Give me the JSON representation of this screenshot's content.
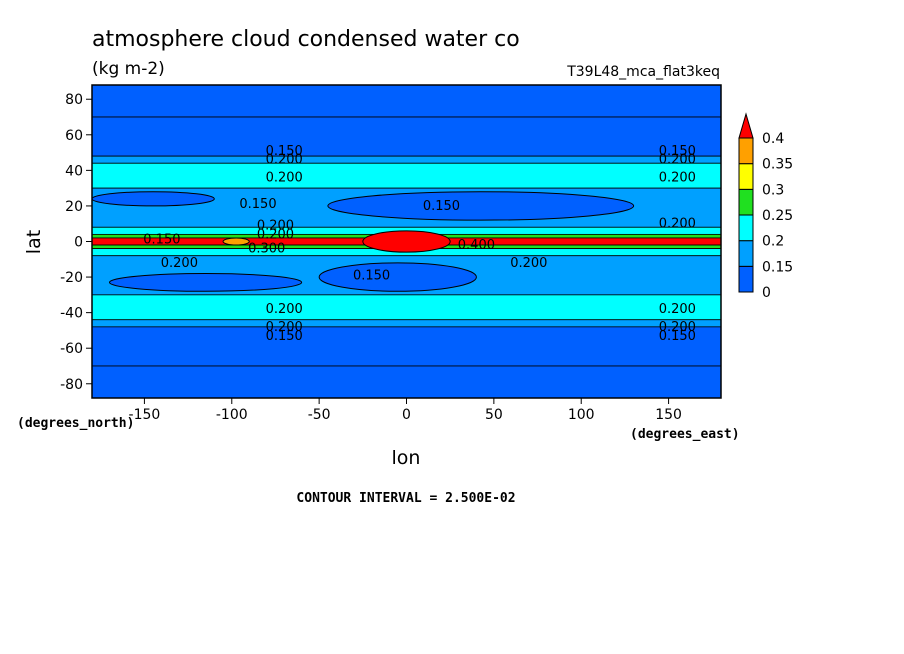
{
  "chart_data": {
    "type": "heatmap",
    "title": "atmosphere cloud condensed water co",
    "units": "(kg m-2)",
    "run_label": "T39L48_mca_flat3keq",
    "xlabel": "lon",
    "ylabel": "lat",
    "x_unit_label": "(degrees_east)",
    "y_unit_label": "(degrees_north)",
    "xlim": [
      -180,
      180
    ],
    "ylim": [
      -88,
      88
    ],
    "x_ticks": [
      -150,
      -100,
      -50,
      0,
      50,
      100,
      150
    ],
    "x_tick_labels": [
      "-150",
      "-100",
      "-50",
      "0",
      "50",
      "100",
      "150"
    ],
    "y_ticks": [
      80,
      60,
      40,
      20,
      0,
      -20,
      -40,
      -60,
      -80
    ],
    "y_tick_labels": [
      "80",
      "60",
      "40",
      "20",
      "0",
      "-20",
      "-40",
      "-60",
      "-80"
    ],
    "contour_interval_text": "CONTOUR INTERVAL = 2.500E-02",
    "contour_interval": 0.025,
    "colorbar": {
      "levels": [
        0,
        0.15,
        0.2,
        0.25,
        0.3,
        0.35,
        0.4
      ],
      "labels": [
        "0",
        "0.15",
        "0.2",
        "0.25",
        "0.3",
        "0.35",
        "0.4"
      ],
      "colors": [
        "#0060ff",
        "#00a0ff",
        "#00ffff",
        "#20e020",
        "#ffff00",
        "#ffa000",
        "#ff0000"
      ]
    },
    "zonal_bands": [
      {
        "lat": [
          70,
          88
        ],
        "value": 0.1
      },
      {
        "lat": [
          48,
          70
        ],
        "value": 0.125
      },
      {
        "lat": [
          44,
          48
        ],
        "value": 0.16
      },
      {
        "lat": [
          30,
          44
        ],
        "value": 0.21
      },
      {
        "lat": [
          8,
          30
        ],
        "value": 0.16
      },
      {
        "lat": [
          4,
          8
        ],
        "value": 0.21
      },
      {
        "lat": [
          2,
          4
        ],
        "value": 0.26
      },
      {
        "lat": [
          -2,
          2
        ],
        "value": 0.41
      },
      {
        "lat": [
          -4,
          -2
        ],
        "value": 0.26
      },
      {
        "lat": [
          -8,
          -4
        ],
        "value": 0.21
      },
      {
        "lat": [
          -30,
          -8
        ],
        "value": 0.16
      },
      {
        "lat": [
          -44,
          -30
        ],
        "value": 0.21
      },
      {
        "lat": [
          -48,
          -44
        ],
        "value": 0.16
      },
      {
        "lat": [
          -70,
          -48
        ],
        "value": 0.125
      },
      {
        "lat": [
          -88,
          -70
        ],
        "value": 0.1
      }
    ],
    "features": [
      {
        "name": "equatorial maximum",
        "lon": [
          -25,
          25
        ],
        "lat": [
          -6,
          6
        ],
        "value": 0.41
      },
      {
        "name": "orange patch",
        "lon": [
          -105,
          -90
        ],
        "lat": [
          -2,
          2
        ],
        "value": 0.36
      },
      {
        "name": "north subtropical low",
        "lon": [
          -45,
          130
        ],
        "lat": [
          12,
          28
        ],
        "value": 0.12
      },
      {
        "name": "south subtropical low",
        "lon": [
          -50,
          40
        ],
        "lat": [
          -28,
          -12
        ],
        "value": 0.12
      },
      {
        "name": "south-west subtropical low",
        "lon": [
          -170,
          -60
        ],
        "lat": [
          -28,
          -18
        ],
        "value": 0.12
      },
      {
        "name": "north-west subtropical low",
        "lon": [
          -180,
          -110
        ],
        "lat": [
          20,
          28
        ],
        "value": 0.12
      }
    ],
    "contour_labels": [
      {
        "text": "0.150",
        "lon": -70,
        "lat": 51
      },
      {
        "text": "0.200",
        "lon": -70,
        "lat": 46
      },
      {
        "text": "0.200",
        "lon": -70,
        "lat": 36
      },
      {
        "text": "0.150",
        "lon": -85,
        "lat": 21
      },
      {
        "text": "0.150",
        "lon": 20,
        "lat": 20
      },
      {
        "text": "0.200",
        "lon": -75,
        "lat": 9
      },
      {
        "text": "0.200",
        "lon": -75,
        "lat": 4
      },
      {
        "text": "0.300",
        "lon": -80,
        "lat": -4
      },
      {
        "text": "0.150",
        "lon": -140,
        "lat": 1
      },
      {
        "text": "0.200",
        "lon": -130,
        "lat": -12
      },
      {
        "text": "0.400",
        "lon": 40,
        "lat": -2
      },
      {
        "text": "0.200",
        "lon": 70,
        "lat": -12
      },
      {
        "text": "0.150",
        "lon": -20,
        "lat": -19
      },
      {
        "text": "0.150",
        "lon": 155,
        "lat": 51
      },
      {
        "text": "0.200",
        "lon": 155,
        "lat": 46
      },
      {
        "text": "0.200",
        "lon": 155,
        "lat": 36
      },
      {
        "text": "0.200",
        "lon": 155,
        "lat": 10
      },
      {
        "text": "0.200",
        "lon": -70,
        "lat": -38
      },
      {
        "text": "0.200",
        "lon": -70,
        "lat": -48
      },
      {
        "text": "0.150",
        "lon": -70,
        "lat": -53
      },
      {
        "text": "0.200",
        "lon": 155,
        "lat": -38
      },
      {
        "text": "0.200",
        "lon": 155,
        "lat": -48
      },
      {
        "text": "0.150",
        "lon": 155,
        "lat": -53
      }
    ]
  }
}
